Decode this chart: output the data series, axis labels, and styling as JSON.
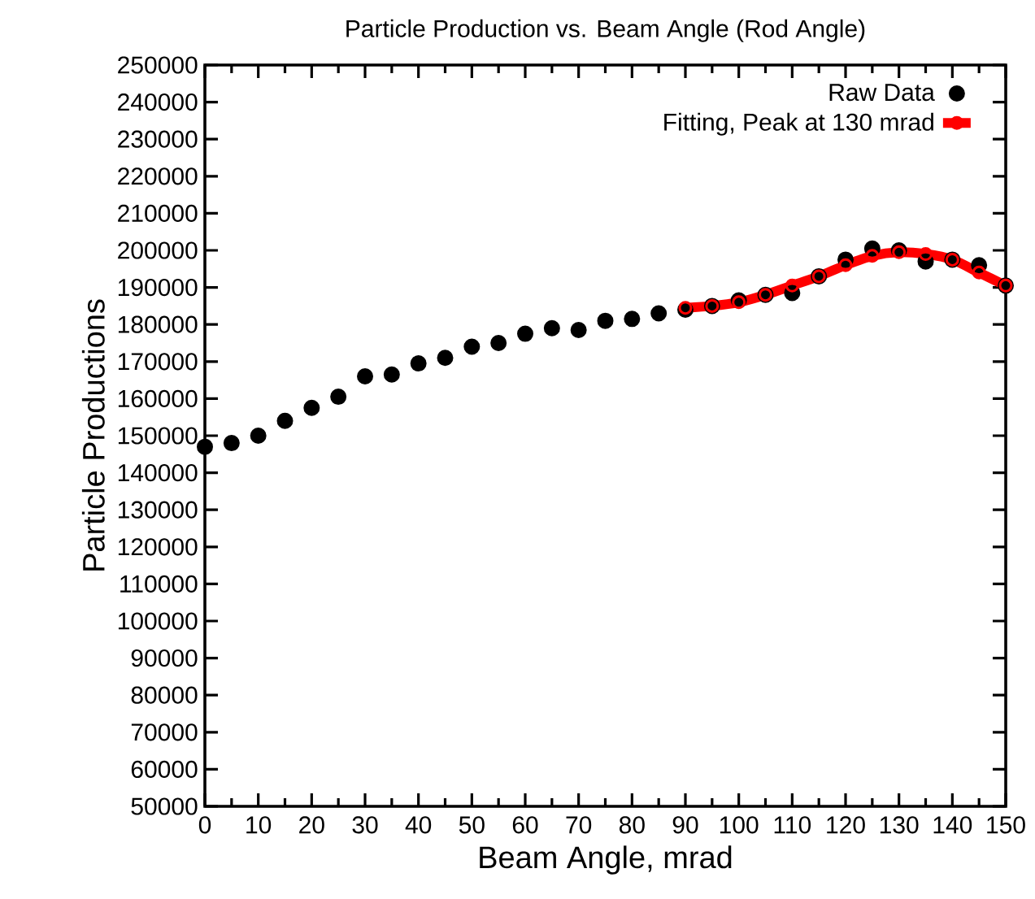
{
  "chart_data": {
    "type": "scatter",
    "title": "Particle Production vs. Beam Angle (Rod Angle)",
    "xlabel": "Beam Angle, mrad",
    "ylabel": "Particle Productions",
    "xlim": [
      0,
      150
    ],
    "ylim": [
      50000,
      250000
    ],
    "xticks": [
      0,
      10,
      20,
      30,
      40,
      50,
      60,
      70,
      80,
      90,
      100,
      110,
      120,
      130,
      140,
      150
    ],
    "yticks": [
      50000,
      60000,
      70000,
      80000,
      90000,
      100000,
      110000,
      120000,
      130000,
      140000,
      150000,
      160000,
      170000,
      180000,
      190000,
      200000,
      210000,
      220000,
      230000,
      240000,
      250000
    ],
    "grid": false,
    "legend": "top right",
    "series": [
      {
        "name": "Raw Data",
        "marker": "circle",
        "color": "#000000",
        "x": [
          0,
          5,
          10,
          15,
          20,
          25,
          30,
          35,
          40,
          45,
          50,
          55,
          60,
          65,
          70,
          75,
          80,
          85,
          90,
          95,
          100,
          105,
          110,
          115,
          120,
          125,
          130,
          135,
          140,
          145,
          150
        ],
        "values": [
          147000,
          148000,
          150000,
          154000,
          157500,
          160500,
          166000,
          166500,
          169500,
          171000,
          174000,
          175000,
          177500,
          179000,
          178500,
          181000,
          181500,
          183000,
          184000,
          185000,
          186500,
          188000,
          188500,
          193000,
          197500,
          200500,
          200000,
          197000,
          197500,
          196000,
          190500
        ]
      },
      {
        "name": "Fitting, Peak at 130 mrad",
        "type": "line",
        "marker": "circle",
        "color": "#ff0000",
        "x": [
          90,
          95,
          100,
          105,
          110,
          115,
          120,
          125,
          130,
          135,
          140,
          145,
          150
        ],
        "values": [
          184500,
          185000,
          186000,
          188000,
          190500,
          193000,
          196000,
          198500,
          199500,
          199000,
          197500,
          194000,
          190500
        ]
      }
    ]
  }
}
